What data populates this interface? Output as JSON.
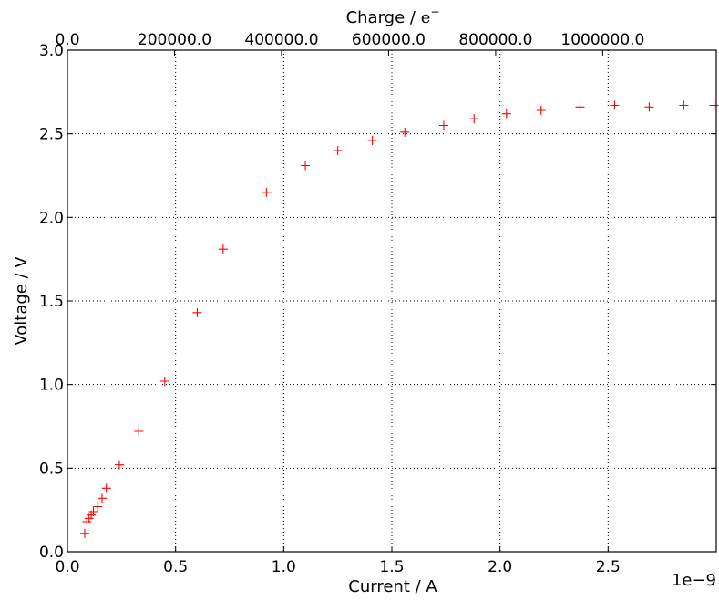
{
  "chart_data": {
    "type": "scatter",
    "marker": "+",
    "marker_color": "#ff0000",
    "grid": true,
    "xlabel": "Current / A",
    "x_multiplier_label": "1e−9",
    "ylabel": "Voltage / V",
    "top_xlabel_text": "Charge / ",
    "top_xlabel_unit_base": "e",
    "top_xlabel_unit_sup": "−",
    "xlim": [
      0.0,
      3.0
    ],
    "ylim": [
      0.0,
      3.0
    ],
    "x_ticks": [
      "0.0",
      "0.5",
      "1.0",
      "1.5",
      "2.0",
      "2.5"
    ],
    "y_ticks": [
      "0.0",
      "0.5",
      "1.0",
      "1.5",
      "2.0",
      "2.5",
      "3.0"
    ],
    "top_x_ticks": [
      "0.0",
      "200000.0",
      "400000.0",
      "600000.0",
      "800000.0",
      "1000000.0"
    ],
    "x_tick_values": [
      0.0,
      0.5,
      1.0,
      1.5,
      2.0,
      2.5
    ],
    "y_tick_values": [
      0.0,
      0.5,
      1.0,
      1.5,
      2.0,
      2.5,
      3.0
    ],
    "top_tick_positions_x": [
      0.0,
      0.495,
      0.99,
      1.485,
      1.98,
      2.475
    ],
    "x_unit_note": "x values in units of 1e-9 A",
    "points": [
      [
        0.08,
        0.11
      ],
      [
        0.09,
        0.18
      ],
      [
        0.1,
        0.2
      ],
      [
        0.11,
        0.22
      ],
      [
        0.12,
        0.24
      ],
      [
        0.14,
        0.27
      ],
      [
        0.16,
        0.32
      ],
      [
        0.18,
        0.38
      ],
      [
        0.24,
        0.52
      ],
      [
        0.33,
        0.72
      ],
      [
        0.45,
        1.02
      ],
      [
        0.6,
        1.43
      ],
      [
        0.72,
        1.81
      ],
      [
        0.92,
        2.15
      ],
      [
        1.1,
        2.31
      ],
      [
        1.25,
        2.4
      ],
      [
        1.41,
        2.46
      ],
      [
        1.56,
        2.51
      ],
      [
        1.74,
        2.55
      ],
      [
        1.88,
        2.59
      ],
      [
        2.03,
        2.62
      ],
      [
        2.19,
        2.64
      ],
      [
        2.37,
        2.66
      ],
      [
        2.53,
        2.67
      ],
      [
        2.69,
        2.66
      ],
      [
        2.85,
        2.67
      ],
      [
        2.99,
        2.67
      ]
    ]
  }
}
